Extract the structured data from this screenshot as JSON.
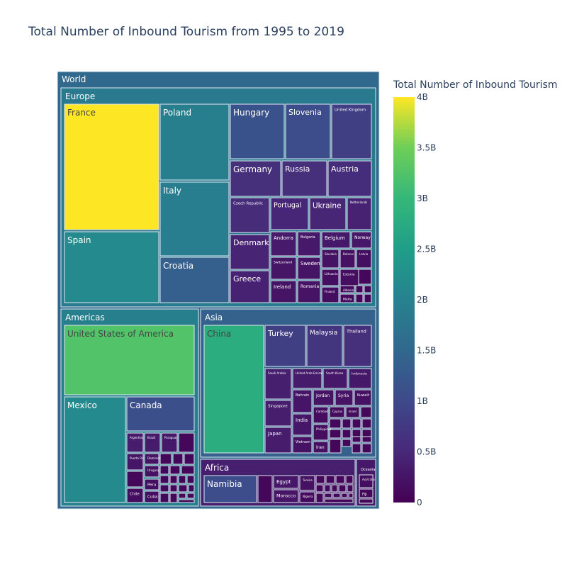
{
  "chart_data": {
    "type": "treemap",
    "title": "Total Number of Inbound Tourism from 1995 to 2019",
    "root": "World",
    "colorbar": {
      "title": "Total Number of Inbound Tourism",
      "range": [
        0,
        4000000000
      ],
      "colorscale": "Viridis",
      "ticks": [
        "4B",
        "3.5B",
        "3B",
        "2.5B",
        "2B",
        "1.5B",
        "1B",
        "0.5B",
        "0"
      ],
      "tick_values": [
        4000000000,
        3500000000,
        3000000000,
        2500000000,
        2000000000,
        1500000000,
        1000000000,
        500000000,
        0
      ]
    },
    "regions": [
      {
        "name": "Europe",
        "value": 1850000000,
        "countries": [
          {
            "name": "France",
            "value": 4000000000
          },
          {
            "name": "Spain",
            "value": 2150000000
          },
          {
            "name": "Poland",
            "value": 1950000000
          },
          {
            "name": "Italy",
            "value": 1900000000
          },
          {
            "name": "Croatia",
            "value": 1350000000
          },
          {
            "name": "Hungary",
            "value": 1150000000
          },
          {
            "name": "Slovenia",
            "value": 1050000000
          },
          {
            "name": "United Kingdom",
            "value": 850000000
          },
          {
            "name": "Germany",
            "value": 620000000
          },
          {
            "name": "Russia",
            "value": 600000000
          },
          {
            "name": "Austria",
            "value": 580000000
          },
          {
            "name": "Czech Republic",
            "value": 560000000
          },
          {
            "name": "Portugal",
            "value": 480000000
          },
          {
            "name": "Ukraine",
            "value": 470000000
          },
          {
            "name": "Netherlands",
            "value": 420000000
          },
          {
            "name": "Denmark",
            "value": 450000000
          },
          {
            "name": "Greece",
            "value": 420000000
          },
          {
            "name": "Andorra",
            "value": 320000000
          },
          {
            "name": "Bulgaria",
            "value": 310000000
          },
          {
            "name": "Belgium",
            "value": 300000000
          },
          {
            "name": "Norway",
            "value": 280000000
          },
          {
            "name": "Switzerland",
            "value": 250000000
          },
          {
            "name": "Sweden",
            "value": 240000000
          },
          {
            "name": "Slovakia",
            "value": 220000000
          },
          {
            "name": "Belarus",
            "value": 200000000
          },
          {
            "name": "Latvia",
            "value": 180000000
          },
          {
            "name": "Ireland",
            "value": 240000000
          },
          {
            "name": "Romania",
            "value": 230000000
          },
          {
            "name": "Lithuania",
            "value": 180000000
          },
          {
            "name": "Estonia",
            "value": 170000000
          },
          {
            "name": "Finland",
            "value": 160000000
          },
          {
            "name": "Albania",
            "value": 120000000
          },
          {
            "name": "Malta",
            "value": 110000000
          }
        ]
      },
      {
        "name": "Americas",
        "value": 1950000000,
        "countries": [
          {
            "name": "United States of America",
            "value": 3250000000
          },
          {
            "name": "Mexico",
            "value": 2150000000
          },
          {
            "name": "Canada",
            "value": 1100000000
          },
          {
            "name": "Argentina",
            "value": 350000000
          },
          {
            "name": "Brazil",
            "value": 330000000
          },
          {
            "name": "Paraguay",
            "value": 300000000
          },
          {
            "name": "Puerto Rico",
            "value": 250000000
          },
          {
            "name": "Dominica",
            "value": 220000000
          },
          {
            "name": "Uruguay",
            "value": 200000000
          },
          {
            "name": "Peru",
            "value": 180000000
          },
          {
            "name": "Chile",
            "value": 160000000
          },
          {
            "name": "Cuba",
            "value": 150000000
          }
        ]
      },
      {
        "name": "Asia",
        "value": 1400000000,
        "countries": [
          {
            "name": "China",
            "value": 2800000000
          },
          {
            "name": "Turkey",
            "value": 850000000
          },
          {
            "name": "Malaysia",
            "value": 700000000
          },
          {
            "name": "Thailand",
            "value": 600000000
          },
          {
            "name": "Saudi Arabia",
            "value": 380000000
          },
          {
            "name": "United Arab Emirates",
            "value": 330000000
          },
          {
            "name": "South Korea",
            "value": 300000000
          },
          {
            "name": "Indonesia",
            "value": 290000000
          },
          {
            "name": "Singapore",
            "value": 360000000
          },
          {
            "name": "Bahrain",
            "value": 260000000
          },
          {
            "name": "Jordan",
            "value": 240000000
          },
          {
            "name": "Syria",
            "value": 230000000
          },
          {
            "name": "Kuwait",
            "value": 200000000
          },
          {
            "name": "India",
            "value": 280000000
          },
          {
            "name": "Japan",
            "value": 340000000
          },
          {
            "name": "Vietnam",
            "value": 220000000
          },
          {
            "name": "Iran",
            "value": 200000000
          },
          {
            "name": "Cambodia",
            "value": 160000000
          },
          {
            "name": "Philippines",
            "value": 150000000
          },
          {
            "name": "Cyprus",
            "value": 140000000
          },
          {
            "name": "Israel",
            "value": 140000000
          }
        ]
      },
      {
        "name": "Africa",
        "value": 380000000,
        "countries": [
          {
            "name": "Namibia",
            "value": 1050000000
          },
          {
            "name": "Egypt",
            "value": 280000000
          },
          {
            "name": "Morocco",
            "value": 250000000
          },
          {
            "name": "Tunisia",
            "value": 200000000
          },
          {
            "name": "Nigeria",
            "value": 120000000
          }
        ]
      },
      {
        "name": "Oceania",
        "value": 300000000,
        "countries": [
          {
            "name": "Australia",
            "value": 150000000
          },
          {
            "name": "Fiji",
            "value": 80000000
          }
        ]
      }
    ]
  }
}
